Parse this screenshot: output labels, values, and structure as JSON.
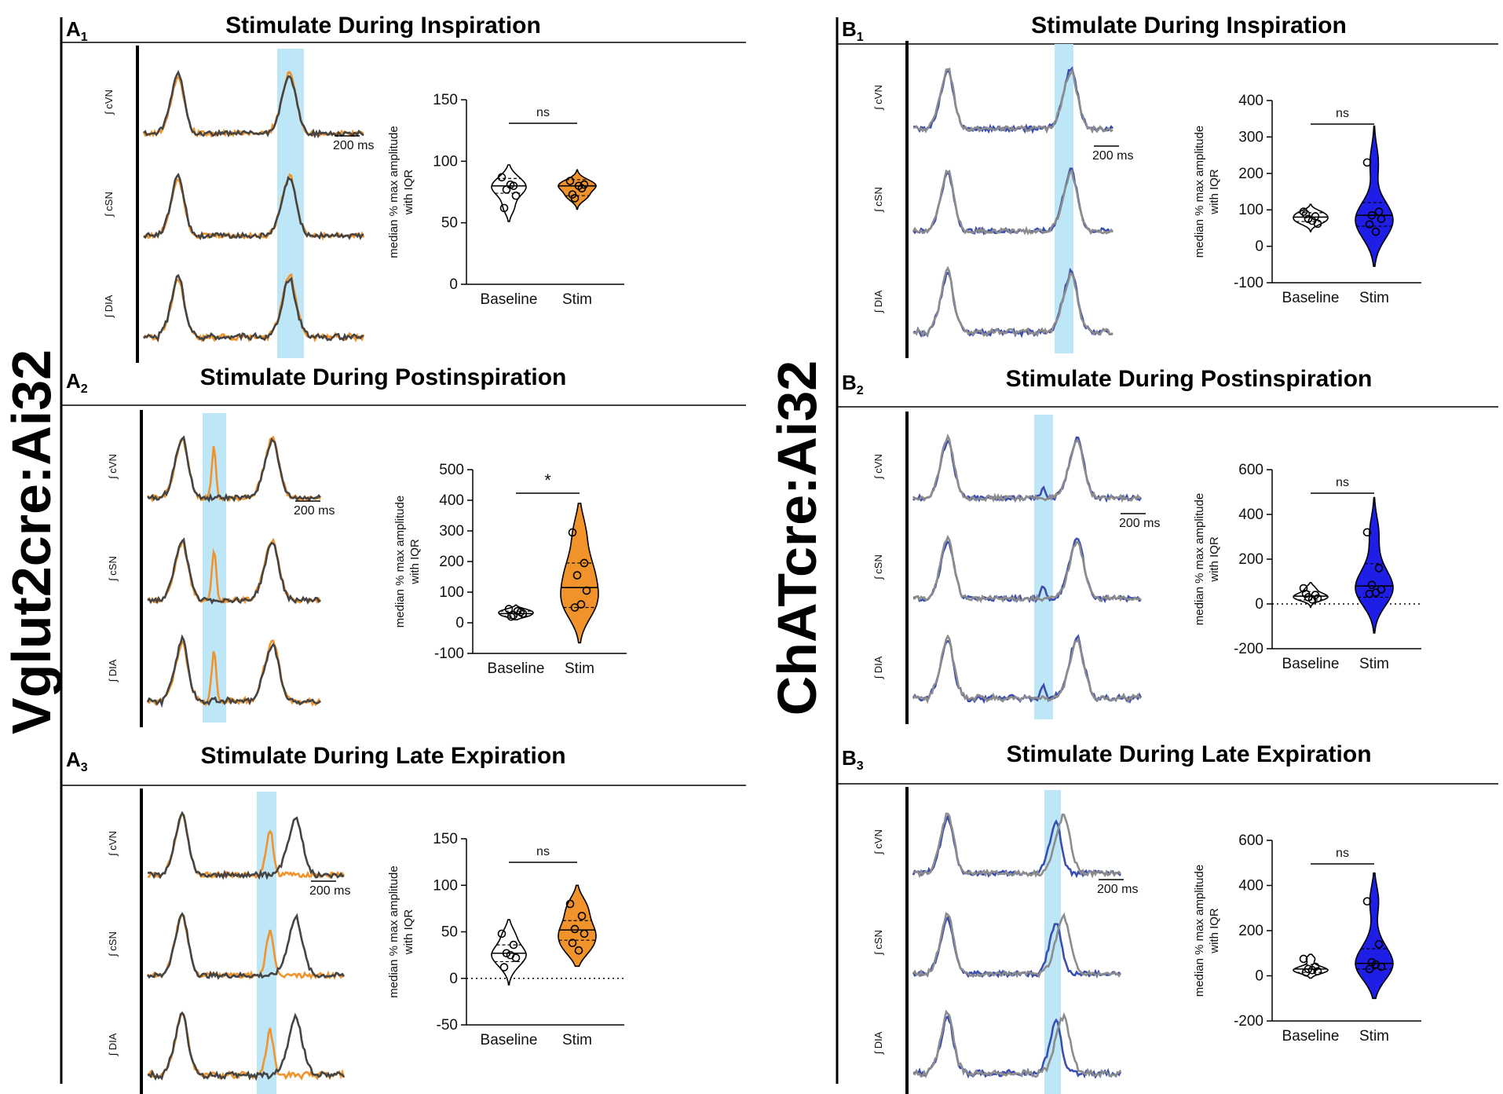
{
  "figure": {
    "left_group_label": "Vglut2cre:Ai32",
    "right_group_label": "ChATcre:Ai32",
    "trace_labels": [
      "∫ cVN",
      "∫ cSN",
      "∫ DIA"
    ],
    "scale_bar_label": "200 ms"
  },
  "colors": {
    "vglut_stim": "#F0932B",
    "chat_stim": "#1E1EE6",
    "chat_trace": "#3A4DB0",
    "baseline_trace": "#444444",
    "baseline_trace_light": "#8C8C8C",
    "stim_window": "#BDE6F7"
  },
  "panels": [
    {
      "id": "A1",
      "letter": "A",
      "sub": "1",
      "title": "Stimulate During Inspiration"
    },
    {
      "id": "A2",
      "letter": "A",
      "sub": "2",
      "title": "Stimulate During Postinspiration"
    },
    {
      "id": "A3",
      "letter": "A",
      "sub": "3",
      "title": "Stimulate During Late Expiration"
    },
    {
      "id": "B1",
      "letter": "B",
      "sub": "1",
      "title": "Stimulate During Inspiration"
    },
    {
      "id": "B2",
      "letter": "B",
      "sub": "2",
      "title": "Stimulate During Postinspiration"
    },
    {
      "id": "B3",
      "letter": "B",
      "sub": "3",
      "title": "Stimulate During Late Expiration"
    }
  ],
  "chart_data": [
    {
      "panel": "A1",
      "type": "violin",
      "categories": [
        "Baseline",
        "Stim"
      ],
      "ylabel_lines": [
        "median % max amplitude",
        "with IQR"
      ],
      "ylim": [
        0,
        150
      ],
      "yticks": [
        0,
        50,
        100,
        150
      ],
      "zero_line": false,
      "significance": "ns",
      "series": [
        {
          "name": "Baseline",
          "color": "#FFFFFF",
          "min": 51,
          "max": 97,
          "median": 80,
          "q1": 74,
          "q3": 86,
          "points": [
            87,
            80,
            77,
            72,
            62,
            81
          ]
        },
        {
          "name": "Stim",
          "color": "#F0932B",
          "min": 61,
          "max": 93,
          "median": 80,
          "q1": 72,
          "q3": 85,
          "points": [
            84,
            78,
            70,
            81,
            73,
            80
          ]
        }
      ]
    },
    {
      "panel": "A2",
      "type": "violin",
      "categories": [
        "Baseline",
        "Stim"
      ],
      "ylabel_lines": [
        "median % max amplitude",
        "with IQR"
      ],
      "ylim": [
        -100,
        500
      ],
      "yticks": [
        -100,
        0,
        100,
        200,
        300,
        400,
        500
      ],
      "zero_line": false,
      "significance": "*",
      "series": [
        {
          "name": "Baseline",
          "color": "#FFFFFF",
          "min": 10,
          "max": 58,
          "median": 30,
          "q1": 22,
          "q3": 38,
          "points": [
            45,
            35,
            25,
            30,
            20,
            38
          ]
        },
        {
          "name": "Stim",
          "color": "#F0932B",
          "min": -65,
          "max": 390,
          "median": 115,
          "q1": 50,
          "q3": 195,
          "points": [
            295,
            195,
            155,
            105,
            50,
            60
          ]
        }
      ]
    },
    {
      "panel": "A3",
      "type": "violin",
      "categories": [
        "Baseline",
        "Stim"
      ],
      "ylabel_lines": [
        "median % max amplitude",
        "with IQR"
      ],
      "ylim": [
        -50,
        150
      ],
      "yticks": [
        -50,
        0,
        50,
        100,
        150
      ],
      "zero_line": true,
      "significance": "ns",
      "series": [
        {
          "name": "Baseline",
          "color": "#FFFFFF",
          "min": -7,
          "max": 63,
          "median": 27,
          "q1": 18,
          "q3": 36,
          "points": [
            48,
            36,
            27,
            22,
            12,
            25
          ]
        },
        {
          "name": "Stim",
          "color": "#F0932B",
          "min": 13,
          "max": 100,
          "median": 52,
          "q1": 41,
          "q3": 62,
          "points": [
            80,
            67,
            53,
            48,
            38,
            30
          ]
        }
      ]
    },
    {
      "panel": "B1",
      "type": "violin",
      "categories": [
        "Baseline",
        "Stim"
      ],
      "ylabel_lines": [
        "median % max amplitude",
        "with IQR"
      ],
      "ylim": [
        -100,
        400
      ],
      "yticks": [
        -100,
        0,
        100,
        200,
        300,
        400
      ],
      "zero_line": false,
      "significance": "ns",
      "series": [
        {
          "name": "Baseline",
          "color": "#FFFFFF",
          "min": 40,
          "max": 115,
          "median": 80,
          "q1": 68,
          "q3": 92,
          "points": [
            95,
            82,
            75,
            62,
            88,
            70
          ]
        },
        {
          "name": "Stim",
          "color": "#1E1EE6",
          "min": -55,
          "max": 330,
          "median": 85,
          "q1": 55,
          "q3": 120,
          "points": [
            230,
            95,
            85,
            75,
            60,
            40
          ]
        }
      ]
    },
    {
      "panel": "B2",
      "type": "violin",
      "categories": [
        "Baseline",
        "Stim"
      ],
      "ylabel_lines": [
        "median % max amplitude",
        "with IQR"
      ],
      "ylim": [
        -200,
        600
      ],
      "yticks": [
        -200,
        0,
        200,
        400,
        600
      ],
      "zero_line": true,
      "significance": "ns",
      "series": [
        {
          "name": "Baseline",
          "color": "#FFFFFF",
          "min": -15,
          "max": 95,
          "median": 35,
          "q1": 18,
          "q3": 55,
          "points": [
            70,
            40,
            30,
            25,
            45,
            20
          ]
        },
        {
          "name": "Stim",
          "color": "#1E1EE6",
          "min": -130,
          "max": 475,
          "median": 80,
          "q1": 30,
          "q3": 180,
          "points": [
            320,
            160,
            85,
            65,
            45,
            50
          ]
        }
      ]
    },
    {
      "panel": "B3",
      "type": "violin",
      "categories": [
        "Baseline",
        "Stim"
      ],
      "ylabel_lines": [
        "median % max amplitude",
        "with IQR"
      ],
      "ylim": [
        -200,
        600
      ],
      "yticks": [
        -200,
        0,
        200,
        400,
        600
      ],
      "zero_line": false,
      "significance": "ns",
      "series": [
        {
          "name": "Baseline",
          "color": "#FFFFFF",
          "min": -10,
          "max": 95,
          "median": 30,
          "q1": 15,
          "q3": 50,
          "points": [
            75,
            40,
            30,
            20,
            15,
            25
          ]
        },
        {
          "name": "Stim",
          "color": "#1E1EE6",
          "min": -100,
          "max": 455,
          "median": 55,
          "q1": 30,
          "q3": 120,
          "points": [
            330,
            140,
            60,
            40,
            30,
            50
          ]
        }
      ]
    }
  ]
}
